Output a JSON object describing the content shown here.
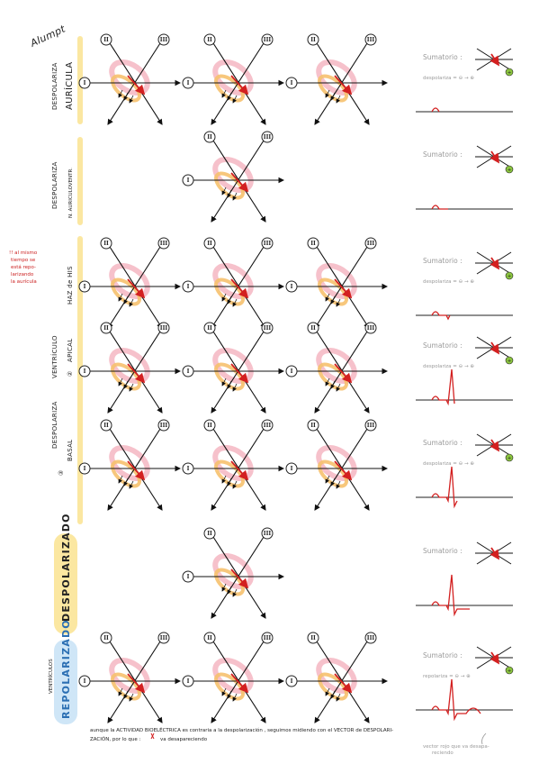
{
  "signature": "Alumpt",
  "sections": {
    "depolariza": "DESPOLARIZA",
    "auricula": "AURÍCULA",
    "n_auricvent": "N. AURICULOVENTR.",
    "haz_his": "HAZ de HIS",
    "ventriculo": "VENTRÍCULO",
    "num_2": "②",
    "apical": "APICAL",
    "num_3": "③",
    "basal": "BASAL",
    "despolarizado": "DESPOLARIZADO",
    "ventriculos": "VENTRÍCULOS",
    "repolarizado": "REPOLARIZADO"
  },
  "side_note": [
    "!! al mismo",
    "tiempo se",
    "está repo-",
    "larizando",
    "la aurícula"
  ],
  "leads": {
    "I": "I",
    "II": "II",
    "III": "III"
  },
  "summary": {
    "sumatorio": "Sumatorio :",
    "despolariza": "despolariza = ⊖ → ⊕",
    "repolariza": "repolariza = ⊖ → ⊕",
    "plus": "+",
    "minus": "−"
  },
  "footer": {
    "line1": "aunque la ACTIVIDAD BIOELÉCTRICA es contraria a la despolarización , seguimos midiendo con el VECTOR de DESPOLARI-",
    "line2": "ZACIÓN, por lo que :",
    "line2b": "va desapareciendo",
    "note": [
      "vector rojo que va desapa-",
      "reciendo"
    ]
  },
  "colors": {
    "heart_pink": "#f4b6c2",
    "heart_orange": "#f6c16e",
    "accent_red": "#d32020",
    "label_yellow": "#fbe7a1",
    "label_blue": "#cfe6f7",
    "green_dot": "#8cc63f"
  },
  "rows": [
    {
      "cells": 3,
      "summary_plus": true,
      "ecg": "p"
    },
    {
      "cells": 1,
      "summary_plus": true,
      "ecg": "pr"
    },
    {
      "cells": 3,
      "summary_plus": true,
      "ecg": "q"
    },
    {
      "cells": 3,
      "summary_plus": true,
      "ecg": "r"
    },
    {
      "cells": 3,
      "summary_plus": true,
      "ecg": "s"
    },
    {
      "cells": 1,
      "summary_plus": false,
      "ecg": "st"
    },
    {
      "cells": 3,
      "summary_plus": true,
      "ecg": "t"
    }
  ]
}
